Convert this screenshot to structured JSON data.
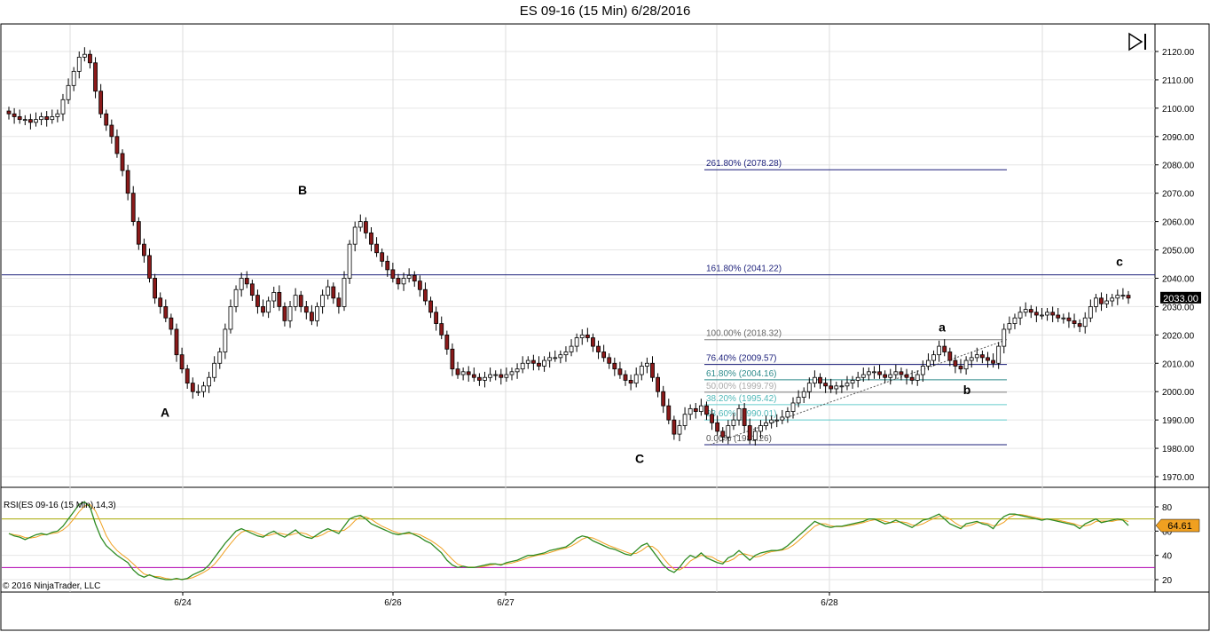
{
  "window": {
    "title": "ES 09-16 (15 Min)  6/28/2016"
  },
  "icons": {
    "play_end": "skip-to-end-icon"
  },
  "colors": {
    "up_candle": "#ffffff",
    "down_candle": "#8b1a1a",
    "wick": "#000000",
    "fib_line_dark": "#1b1f7a",
    "fib_line_gray": "#808080",
    "fib_line_teal": "#2e8b8b",
    "fib_line_cyan": "#66cdcd",
    "rsi_line": "#2e8b22",
    "rsi_signal": "#f0a020",
    "rsi_upper": "#a6a800",
    "rsi_lower": "#b000b0",
    "price_box": "#000000"
  },
  "chart_data": [
    {
      "type": "candlestick",
      "title": "ES 09-16 (15 Min)  6/28/2016",
      "ylim": [
        1965,
        2125
      ],
      "y_ticks": [
        1970,
        1980,
        1990,
        2000,
        2010,
        2020,
        2030,
        2040,
        2050,
        2060,
        2070,
        2080,
        2090,
        2100,
        2110,
        2120
      ],
      "x_tick_labels": [
        "6/24",
        "6/26",
        "6/27",
        "6/28"
      ],
      "grid": true,
      "last_price_label": "2033.00",
      "horizontal_level": {
        "value": 2041.22
      },
      "fib_levels": [
        {
          "label": "261.80% (2078.28)",
          "value": 2078.28
        },
        {
          "label": "161.80% (2041.22)",
          "value": 2041.22
        },
        {
          "label": "100.00% (2018.32)",
          "value": 2018.32
        },
        {
          "label": "76.40% (2009.57)",
          "value": 2009.57
        },
        {
          "label": "61.80% (2004.16)",
          "value": 2004.16
        },
        {
          "label": "50.00% (1999.79)",
          "value": 1999.79
        },
        {
          "label": "38.20% (1995.42)",
          "value": 1995.42
        },
        {
          "label": "23.60% (1990.01)",
          "value": 1990.01
        },
        {
          "label": "0.00% (1981.26)",
          "value": 1981.26
        }
      ],
      "wave_labels": [
        {
          "text": "A",
          "value": 1999
        },
        {
          "text": "B",
          "value": 2064
        },
        {
          "text": "C",
          "value": 1982
        },
        {
          "text": "a",
          "value": 2018
        },
        {
          "text": "b",
          "value": 2006
        },
        {
          "text": "c",
          "value": 2035
        }
      ],
      "close_series": [
        2098,
        2097,
        2096,
        2096,
        2095,
        2096,
        2097,
        2096,
        2097,
        2098,
        2103,
        2108,
        2113,
        2118,
        2119,
        2116,
        2106,
        2098,
        2094,
        2090,
        2084,
        2078,
        2070,
        2060,
        2052,
        2048,
        2040,
        2033,
        2030,
        2026,
        2022,
        2013,
        2008,
        2003,
        2000,
        2000,
        2002,
        2005,
        2010,
        2014,
        2022,
        2030,
        2036,
        2040,
        2038,
        2034,
        2030,
        2028,
        2032,
        2035,
        2030,
        2025,
        2030,
        2034,
        2030,
        2028,
        2025,
        2030,
        2034,
        2037,
        2033,
        2030,
        2040,
        2052,
        2058,
        2060,
        2056,
        2052,
        2049,
        2046,
        2043,
        2040,
        2038,
        2040,
        2041,
        2039,
        2036,
        2032,
        2028,
        2024,
        2020,
        2015,
        2008,
        2006,
        2007,
        2006,
        2005,
        2004,
        2005,
        2006,
        2006,
        2005,
        2006,
        2007,
        2008,
        2010,
        2011,
        2010,
        2009,
        2011,
        2012,
        2012,
        2013,
        2014,
        2016,
        2019,
        2020,
        2019,
        2016,
        2014,
        2012,
        2010,
        2008,
        2006,
        2004,
        2003,
        2006,
        2009,
        2010,
        2005,
        2000,
        1995,
        1990,
        1985,
        1988,
        1992,
        1994,
        1993,
        1995,
        1992,
        1989,
        1986,
        1984,
        1988,
        1990,
        1994,
        1988,
        1983,
        1986,
        1988,
        1989,
        1990,
        1990,
        1991,
        1993,
        1996,
        1998,
        2000,
        2003,
        2005,
        2003,
        2002,
        2001,
        2002,
        2002,
        2003,
        2004,
        2005,
        2006,
        2007,
        2007,
        2006,
        2005,
        2006,
        2007,
        2006,
        2005,
        2004,
        2006,
        2009,
        2011,
        2013,
        2016,
        2014,
        2011,
        2009,
        2008,
        2011,
        2012,
        2013,
        2012,
        2011,
        2010,
        2016,
        2022,
        2024,
        2026,
        2028,
        2029,
        2028,
        2027,
        2027,
        2028,
        2027,
        2026,
        2026,
        2025,
        2024,
        2023,
        2026,
        2030,
        2033,
        2031,
        2032,
        2033,
        2034,
        2034,
        2033
      ],
      "x_labels_close": "15-minute bars, 6/23 to 6/28"
    },
    {
      "type": "line",
      "title": "RSI(ES 09-16 (15 Min),14,3)",
      "ylim": [
        15,
        88
      ],
      "y_ticks": [
        20,
        40,
        60,
        80
      ],
      "upper_level": 70,
      "lower_level": 30,
      "last_value_label": "64.61",
      "series": [
        {
          "values": [
            58,
            56,
            55,
            53,
            55,
            57,
            58,
            57,
            59,
            60,
            64,
            70,
            76,
            82,
            84,
            80,
            66,
            55,
            48,
            44,
            40,
            37,
            34,
            28,
            24,
            22,
            24,
            22,
            21,
            20,
            20,
            21,
            20,
            21,
            24,
            26,
            28,
            32,
            38,
            44,
            50,
            55,
            60,
            62,
            60,
            58,
            56,
            55,
            58,
            60,
            57,
            55,
            58,
            61,
            57,
            55,
            54,
            57,
            60,
            62,
            60,
            58,
            64,
            70,
            72,
            73,
            70,
            66,
            64,
            62,
            60,
            58,
            57,
            58,
            59,
            57,
            55,
            52,
            50,
            46,
            42,
            36,
            32,
            30,
            31,
            30,
            30,
            31,
            32,
            33,
            33,
            32,
            34,
            35,
            36,
            38,
            40,
            40,
            41,
            42,
            44,
            45,
            46,
            47,
            50,
            54,
            56,
            55,
            52,
            50,
            48,
            46,
            45,
            43,
            41,
            40,
            44,
            48,
            50,
            44,
            38,
            32,
            28,
            26,
            30,
            36,
            40,
            38,
            42,
            38,
            36,
            34,
            33,
            38,
            40,
            44,
            40,
            36,
            40,
            42,
            43,
            44,
            44,
            45,
            48,
            52,
            56,
            60,
            64,
            68,
            66,
            64,
            63,
            64,
            64,
            65,
            66,
            67,
            68,
            70,
            70,
            68,
            66,
            67,
            69,
            67,
            65,
            63,
            66,
            69,
            70,
            72,
            74,
            70,
            66,
            64,
            62,
            66,
            67,
            68,
            66,
            65,
            62,
            68,
            72,
            74,
            74,
            73,
            72,
            71,
            70,
            69,
            70,
            69,
            68,
            67,
            66,
            65,
            62,
            66,
            68,
            70,
            67,
            68,
            69,
            70,
            69,
            64.61
          ]
        }
      ]
    }
  ],
  "footer": {
    "copyright": "© 2016 NinjaTrader, LLC"
  }
}
